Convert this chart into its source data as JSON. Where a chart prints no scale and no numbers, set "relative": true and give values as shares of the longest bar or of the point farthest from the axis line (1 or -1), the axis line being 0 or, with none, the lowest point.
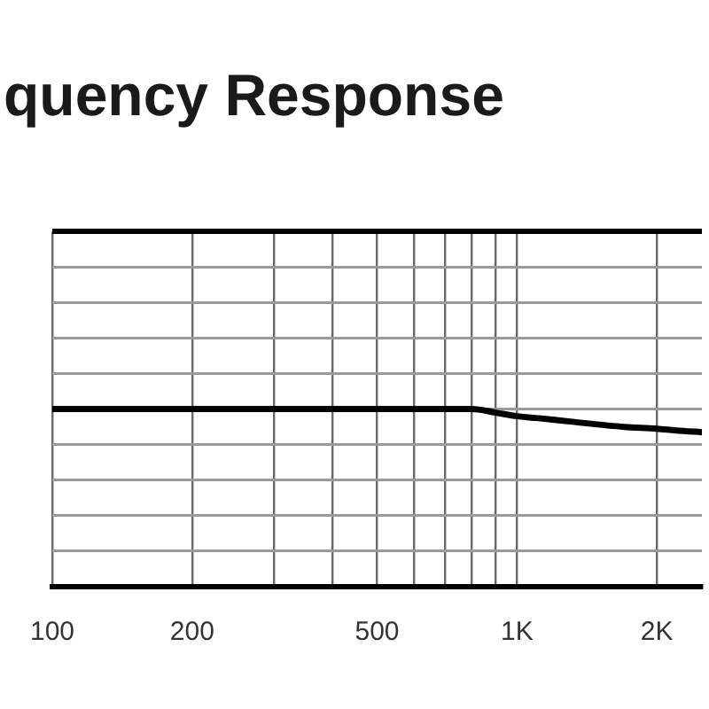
{
  "chart_data": {
    "type": "line",
    "title": "quency Response",
    "x": [
      100,
      200,
      500,
      700,
      800,
      900,
      1000,
      1100,
      1300,
      1700,
      2000,
      2200,
      2500
    ],
    "values": [
      1,
      1,
      1,
      1,
      1,
      0.98,
      0.96,
      0.95,
      0.93,
      0.9,
      0.89,
      0.88,
      0.87
    ],
    "color": "#000000",
    "relative": true,
    "xlim": [
      100,
      2500
    ],
    "xticks": [
      100,
      200,
      {
        "value": 300,
        "label": null
      },
      {
        "value": 400,
        "label": null
      },
      500,
      {
        "value": 600,
        "label": null
      },
      {
        "value": 700,
        "label": null
      },
      {
        "value": 800,
        "label": null
      },
      {
        "value": 900,
        "label": null
      },
      {
        "value": 1000,
        "label": "1K"
      },
      {
        "value": 2000,
        "label": "2K"
      }
    ],
    "log": "x",
    "grid": true
  }
}
